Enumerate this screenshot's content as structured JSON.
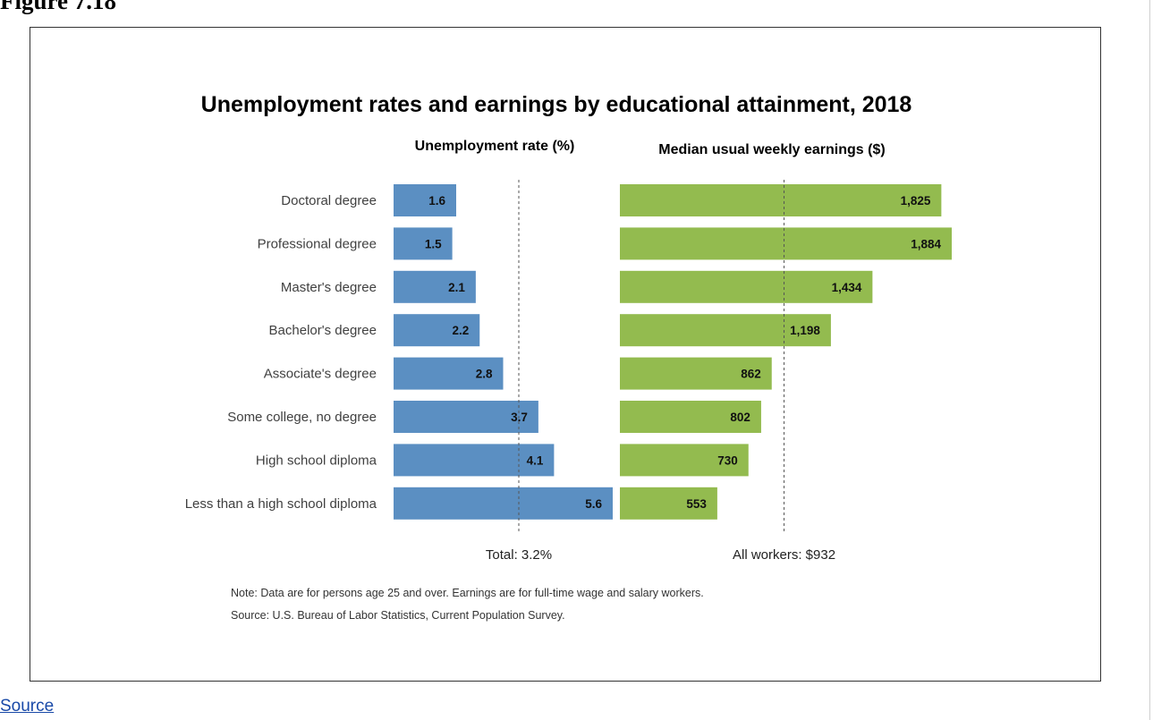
{
  "page": {
    "figure_title": "Figure 7.18",
    "source_link": "Source"
  },
  "chart_data": {
    "type": "bar",
    "orientation": "horizontal",
    "title": "Unemployment rates and earnings by educational attainment, 2018",
    "categories": [
      "Doctoral degree",
      "Professional degree",
      "Master's degree",
      "Bachelor's degree",
      "Associate's degree",
      "Some college, no degree",
      "High school diploma",
      "Less than a high school diploma"
    ],
    "series": [
      {
        "name": "Unemployment rate (%)",
        "values": [
          1.6,
          1.5,
          2.1,
          2.2,
          2.8,
          3.7,
          4.1,
          5.6
        ],
        "labels": [
          "1.6",
          "1.5",
          "2.1",
          "2.2",
          "2.8",
          "3.7",
          "4.1",
          "5.6"
        ],
        "color": "#5b8fc2",
        "xlim": [
          0,
          5.6
        ],
        "reference": {
          "value": 3.2,
          "label": "Total: 3.2%"
        }
      },
      {
        "name": "Median usual weekly earnings ($)",
        "values": [
          1825,
          1884,
          1434,
          1198,
          862,
          802,
          730,
          553
        ],
        "labels": [
          "1,825",
          "1,884",
          "1,434",
          "1,198",
          "862",
          "802",
          "730",
          "553"
        ],
        "color": "#93bb4f",
        "xlim": [
          0,
          1884
        ],
        "reference": {
          "value": 932,
          "label": "All workers: $932"
        }
      }
    ],
    "notes": [
      "Note: Data are for persons age 25 and over. Earnings are for full-time wage and salary workers.",
      "Source: U.S. Bureau of Labor Statistics, Current Population Survey."
    ]
  }
}
